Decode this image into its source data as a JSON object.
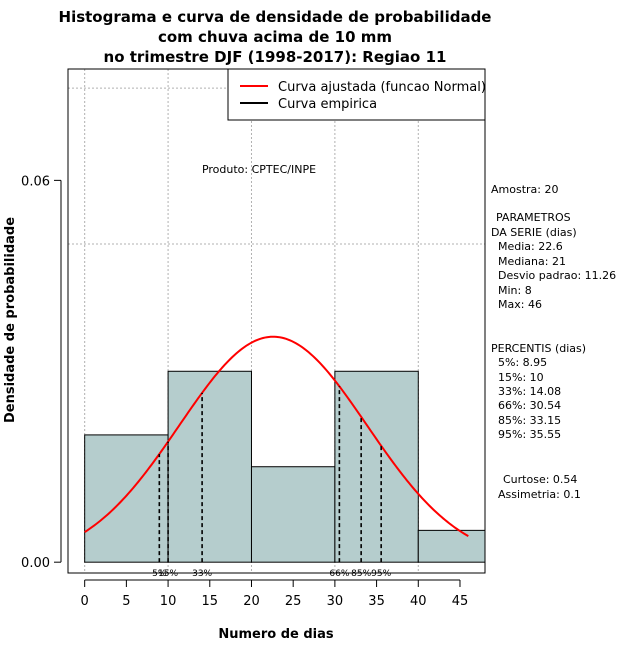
{
  "chart_data": {
    "type": "histogram",
    "title_lines": [
      "Histograma e curva de densidade de probabilidade",
      "com chuva acima de 10 mm",
      "no trimestre DJF (1998-2017): Regiao 11"
    ],
    "xlabel": "Numero de dias",
    "ylabel": "Densidade de probabilidade",
    "xlim": [
      -2,
      48
    ],
    "ylim": [
      -0.0017,
      0.0775
    ],
    "x_ticks": [
      0,
      5,
      10,
      15,
      20,
      25,
      30,
      35,
      40,
      45
    ],
    "y_ticks": [
      0.0,
      0.06
    ],
    "y_tick_labels": [
      "0.00",
      "0.06"
    ],
    "grid_x": [
      0,
      10,
      20,
      30,
      40
    ],
    "grid_y": [
      0.05,
      0.1
    ],
    "bins": [
      {
        "x0": 0,
        "x1": 10,
        "density": 0.02
      },
      {
        "x0": 10,
        "x1": 20,
        "density": 0.03
      },
      {
        "x0": 20,
        "x1": 30,
        "density": 0.015
      },
      {
        "x0": 30,
        "x1": 40,
        "density": 0.03
      },
      {
        "x0": 40,
        "x1": 48,
        "density": 0.005
      }
    ],
    "bar_color": "#b5cdcd",
    "fit_curve": {
      "distribution": "normal",
      "mean": 22.6,
      "sd": 11.26,
      "x_from": 0,
      "x_to": 46,
      "color": "#ff0000"
    },
    "percentiles": [
      {
        "label": "5%",
        "value": 8.95
      },
      {
        "label": "15%",
        "value": 10
      },
      {
        "label": "33%",
        "value": 14.08
      },
      {
        "label": "66%",
        "value": 30.54
      },
      {
        "label": "85%",
        "value": 33.15
      },
      {
        "label": "95%",
        "value": 35.55
      }
    ],
    "percentile_tick_labels": [
      "5%",
      "15%",
      "33%",
      "66%",
      "85%",
      "95%"
    ],
    "legend": [
      {
        "label": "Curva ajustada (funcao Normal)",
        "color": "#ff0000"
      },
      {
        "label": "Curva empirica",
        "color": "#000000"
      }
    ],
    "legend_position": "top-right",
    "annotation": "Produto: CPTEC/INPE"
  },
  "stats_panel": {
    "amostra": "Amostra: 20",
    "param_title_1": "PARAMETROS",
    "param_title_2": "DA SERIE (dias)",
    "param_lines": [
      "Media: 22.6",
      "Mediana: 21",
      "Desvio padrao: 11.26",
      "Min: 8",
      "Max: 46"
    ],
    "percentis_title": "PERCENTIS (dias)",
    "percentis_lines": [
      "5%: 8.95",
      "15%: 10",
      "33%: 14.08",
      "66%: 30.54",
      "85%: 33.15",
      "95%: 35.55"
    ],
    "curtose": "Curtose: 0.54",
    "assimetria": "Assimetria: 0.1"
  }
}
